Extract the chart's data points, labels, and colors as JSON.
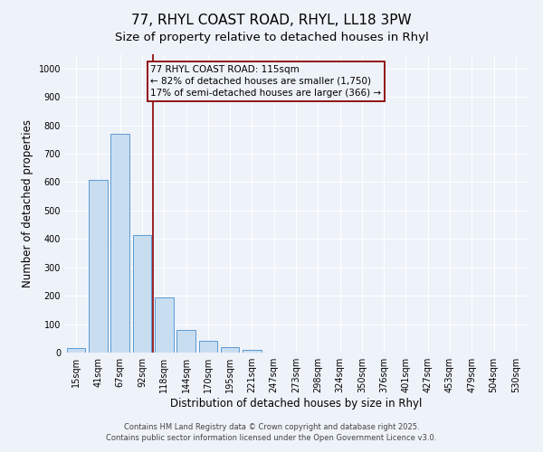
{
  "title": "77, RHYL COAST ROAD, RHYL, LL18 3PW",
  "subtitle": "Size of property relative to detached houses in Rhyl",
  "xlabel": "Distribution of detached houses by size in Rhyl",
  "ylabel": "Number of detached properties",
  "bar_labels": [
    "15sqm",
    "41sqm",
    "67sqm",
    "92sqm",
    "118sqm",
    "144sqm",
    "170sqm",
    "195sqm",
    "221sqm",
    "247sqm",
    "273sqm",
    "298sqm",
    "324sqm",
    "350sqm",
    "376sqm",
    "401sqm",
    "427sqm",
    "453sqm",
    "479sqm",
    "504sqm",
    "530sqm"
  ],
  "bar_values": [
    15,
    607,
    770,
    413,
    193,
    78,
    40,
    18,
    10,
    0,
    0,
    0,
    0,
    0,
    0,
    0,
    0,
    0,
    0,
    0,
    0
  ],
  "bar_color": "#c9ddf0",
  "bar_edge_color": "#5b9bd5",
  "vline_color": "#8b0000",
  "annotation_text_line1": "77 RHYL COAST ROAD: 115sqm",
  "annotation_text_line2": "← 82% of detached houses are smaller (1,750)",
  "annotation_text_line3": "17% of semi-detached houses are larger (366) →",
  "annotation_box_color": "#8b0000",
  "ylim": [
    0,
    1050
  ],
  "yticks": [
    0,
    100,
    200,
    300,
    400,
    500,
    600,
    700,
    800,
    900,
    1000
  ],
  "background_color": "#eef2f9",
  "grid_color": "#ffffff",
  "footer1": "Contains HM Land Registry data © Crown copyright and database right 2025.",
  "footer2": "Contains public sector information licensed under the Open Government Licence v3.0.",
  "title_fontsize": 11,
  "subtitle_fontsize": 9.5,
  "axis_label_fontsize": 8.5,
  "tick_fontsize": 7,
  "annotation_fontsize": 7.5,
  "footer_fontsize": 6
}
